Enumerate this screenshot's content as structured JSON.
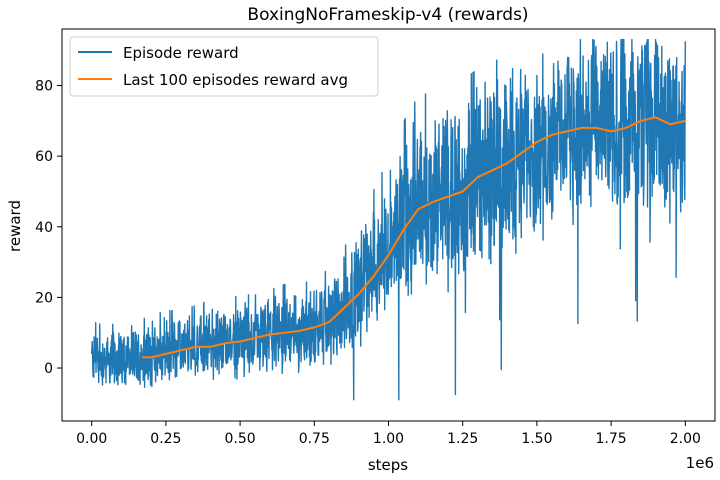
{
  "chart_data": {
    "type": "line",
    "title": "BoxingNoFrameskip-v4 (rewards)",
    "xlabel": "steps",
    "ylabel": "reward",
    "x_offset_text": "1e6",
    "xlim": [
      -0.1,
      2.1
    ],
    "ylim": [
      -15,
      96
    ],
    "x_ticks": [
      0.0,
      0.25,
      0.5,
      0.75,
      1.0,
      1.25,
      1.5,
      1.75,
      2.0
    ],
    "x_tick_labels": [
      "0.00",
      "0.25",
      "0.50",
      "0.75",
      "1.00",
      "1.25",
      "1.50",
      "1.75",
      "2.00"
    ],
    "y_ticks": [
      0,
      20,
      40,
      60,
      80
    ],
    "y_tick_labels": [
      "0",
      "20",
      "40",
      "60",
      "80"
    ],
    "grid": false,
    "legend_position": "top-left",
    "series": [
      {
        "name": "Episode reward",
        "color": "#1f77b4",
        "noisy": true,
        "x": [
          0.0,
          0.05,
          0.1,
          0.15,
          0.2,
          0.25,
          0.3,
          0.35,
          0.4,
          0.45,
          0.5,
          0.55,
          0.6,
          0.65,
          0.7,
          0.75,
          0.8,
          0.85,
          0.9,
          0.95,
          1.0,
          1.05,
          1.1,
          1.15,
          1.2,
          1.25,
          1.3,
          1.35,
          1.4,
          1.45,
          1.5,
          1.55,
          1.6,
          1.65,
          1.7,
          1.75,
          1.8,
          1.85,
          1.9,
          1.95,
          2.0
        ],
        "y": [
          3,
          2,
          3,
          3,
          4,
          5,
          5,
          6,
          7,
          7,
          8,
          8,
          9,
          10,
          10,
          11,
          13,
          17,
          22,
          28,
          34,
          41,
          46,
          48,
          49,
          51,
          54,
          56,
          58,
          61,
          64,
          66,
          67,
          68,
          68,
          68,
          69,
          70,
          71,
          70,
          70
        ]
      },
      {
        "name": "Last 100 episodes reward avg",
        "color": "#ff7f0e",
        "noisy": false,
        "x": [
          0.17,
          0.2,
          0.25,
          0.3,
          0.35,
          0.4,
          0.45,
          0.5,
          0.55,
          0.6,
          0.65,
          0.7,
          0.75,
          0.8,
          0.85,
          0.9,
          0.95,
          1.0,
          1.05,
          1.1,
          1.15,
          1.2,
          1.25,
          1.3,
          1.35,
          1.4,
          1.45,
          1.5,
          1.55,
          1.6,
          1.65,
          1.7,
          1.75,
          1.8,
          1.85,
          1.9,
          1.95,
          2.0
        ],
        "y": [
          3,
          3,
          4,
          5,
          6,
          6,
          7,
          7.5,
          8.5,
          9.5,
          10,
          10.5,
          11.5,
          13,
          17,
          21,
          26,
          32,
          39,
          45,
          47,
          48.5,
          50,
          54,
          56,
          58,
          61,
          64,
          66,
          67,
          68,
          68,
          67,
          68,
          70,
          71,
          69,
          70
        ]
      }
    ]
  }
}
